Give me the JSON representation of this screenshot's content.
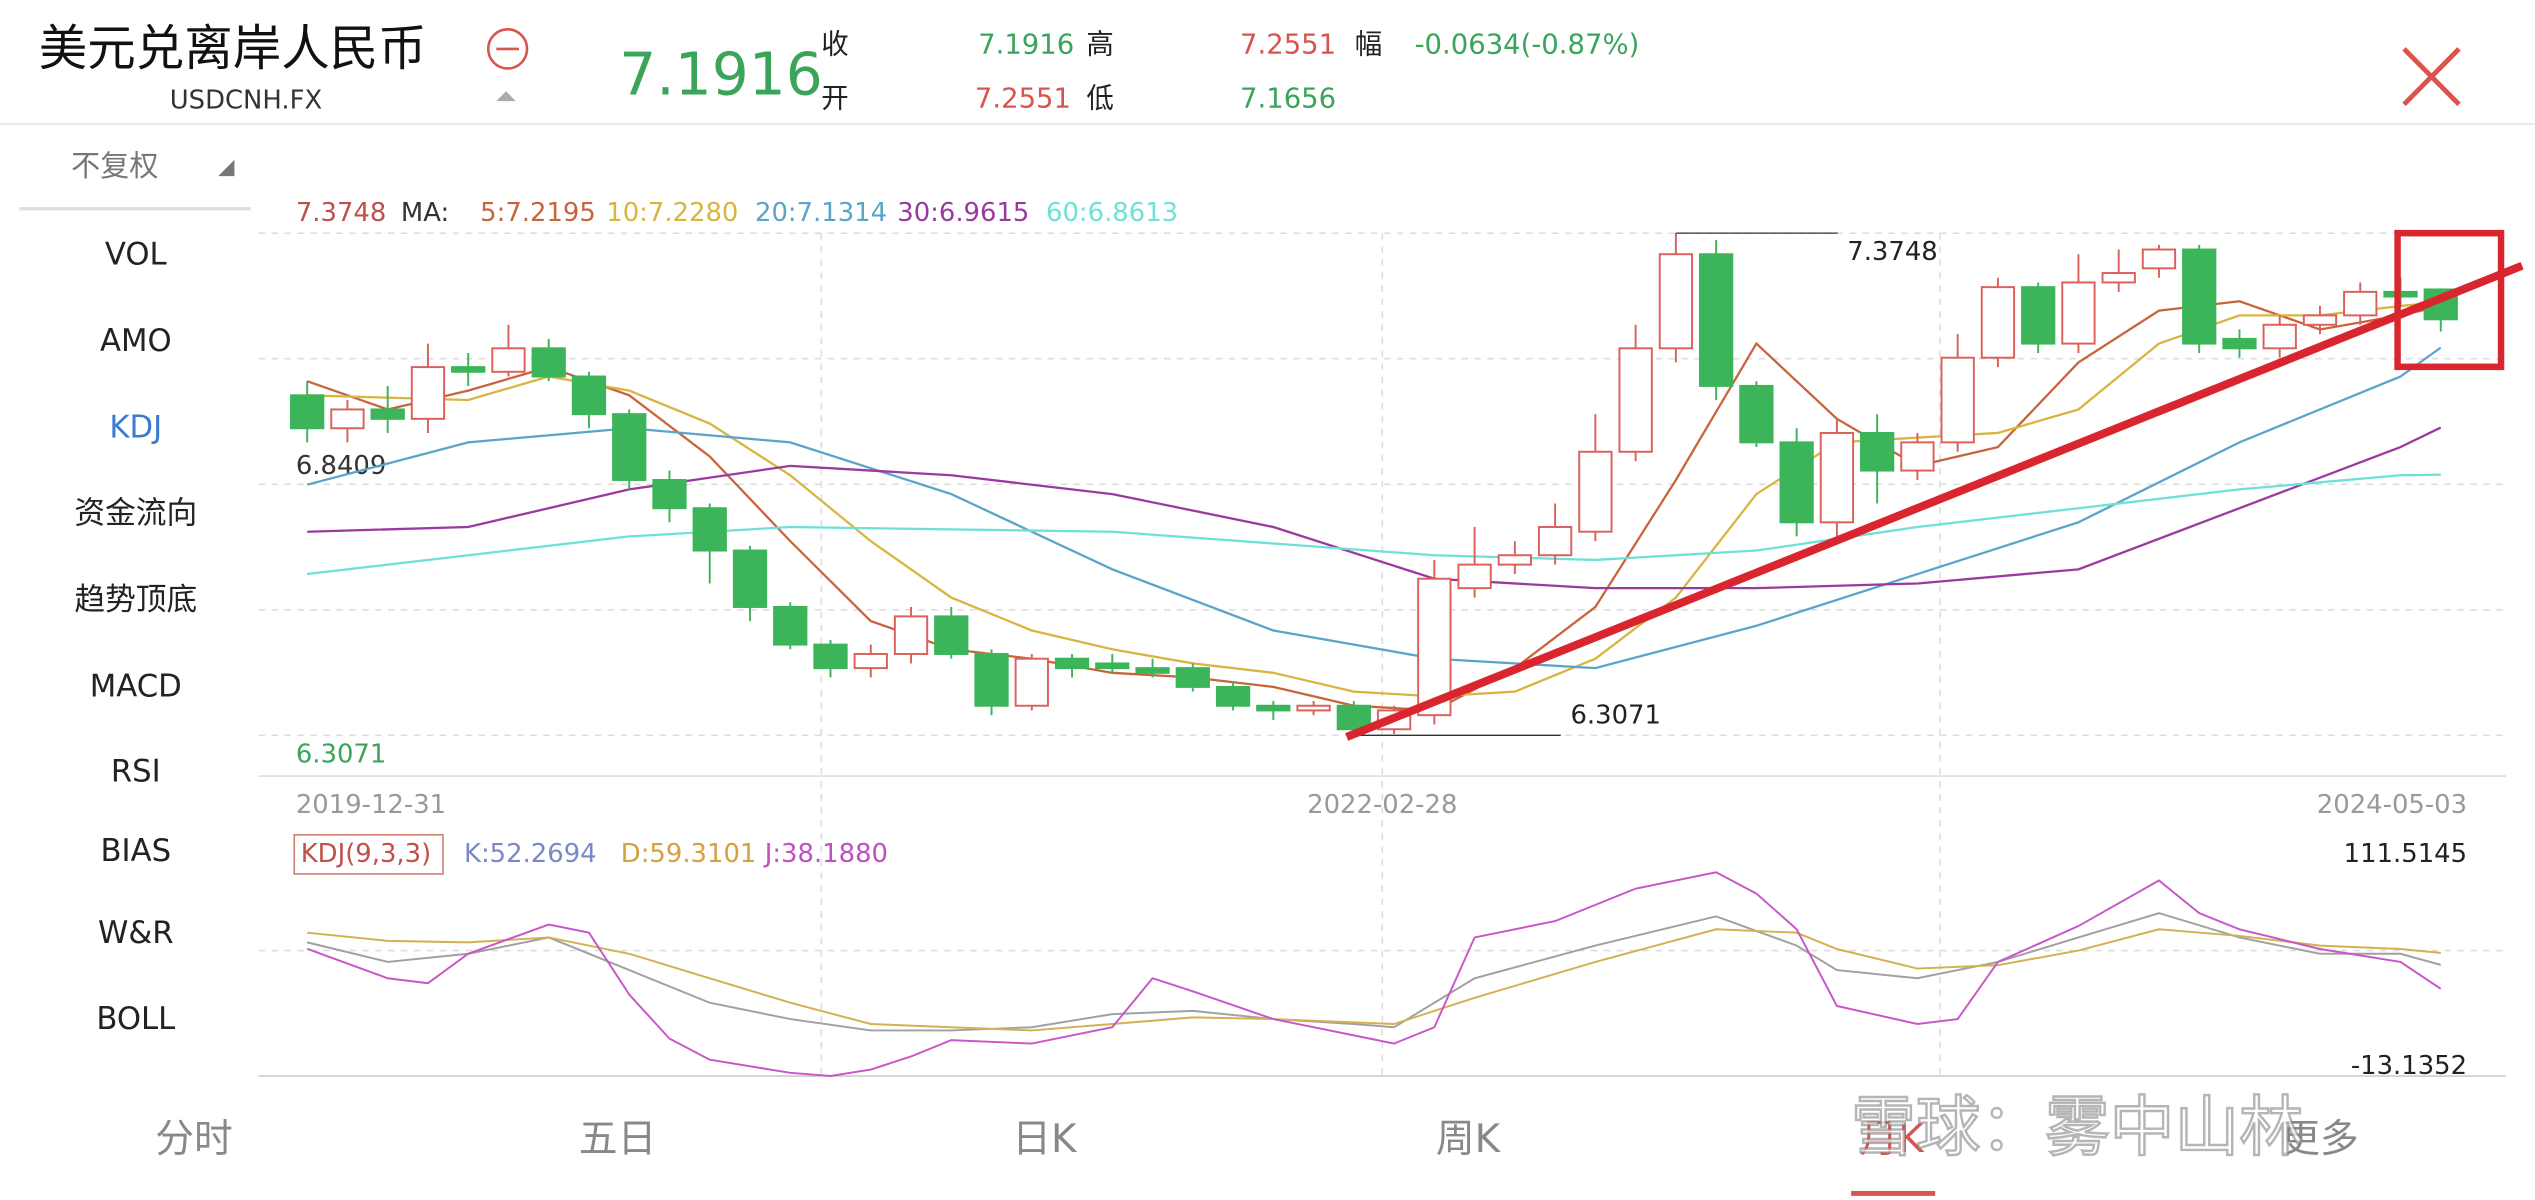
{
  "header": {
    "title": "美元兑离岸人民币",
    "code": "USDCNH.FX",
    "price": "7.1916",
    "close_label": "收",
    "close": "7.1916",
    "high_label": "高",
    "high": "7.2551",
    "change_label": "幅",
    "change": "-0.0634(-0.87%)",
    "open_label": "开",
    "open": "7.2551",
    "low_label": "低",
    "low": "7.1656"
  },
  "sidebar": {
    "adjust": "不复权",
    "items": [
      "VOL",
      "AMO",
      "KDJ",
      "资金流向",
      "趋势顶底",
      "MACD",
      "RSI",
      "BIAS",
      "W&R",
      "BOLL"
    ],
    "selected": 2
  },
  "chart": {
    "type": "candlestick",
    "ylim": [
      6.3071,
      7.3748
    ],
    "yticks": [
      6.3071,
      6.8409,
      7.3748
    ],
    "up_color": "#dc5f5a",
    "down_color": "#3cb55a",
    "ma_label": "MA:",
    "high_annotation": "7.3748",
    "low_annotation": "6.3071",
    "x_labels": [
      "2019-12-31",
      "2022-02-28",
      "2024-05-03"
    ],
    "open": [
      7.03,
      6.96,
      7.0,
      6.98,
      7.09,
      7.08,
      7.13,
      7.07,
      6.99,
      6.85,
      6.79,
      6.7,
      6.58,
      6.5,
      6.45,
      6.48,
      6.56,
      6.48,
      6.37,
      6.47,
      6.46,
      6.45,
      6.45,
      6.41,
      6.37,
      6.36,
      6.37,
      6.32,
      6.35,
      6.62,
      6.67,
      6.69,
      6.74,
      6.91,
      7.13,
      7.33,
      7.05,
      6.93,
      6.76,
      6.95,
      6.87,
      6.93,
      7.11,
      7.26,
      7.14,
      7.27,
      7.3,
      7.34,
      7.15,
      7.13,
      7.18,
      7.2,
      7.25,
      7.2551
    ],
    "high": [
      7.06,
      7.02,
      7.05,
      7.14,
      7.12,
      7.18,
      7.15,
      7.08,
      7.0,
      6.87,
      6.8,
      6.71,
      6.59,
      6.51,
      6.5,
      6.58,
      6.58,
      6.49,
      6.48,
      6.48,
      6.48,
      6.47,
      6.46,
      6.42,
      6.38,
      6.38,
      6.38,
      6.37,
      6.68,
      6.75,
      6.72,
      6.8,
      6.99,
      7.18,
      7.3748,
      7.36,
      7.06,
      6.96,
      6.98,
      6.99,
      6.95,
      7.16,
      7.28,
      7.27,
      7.33,
      7.34,
      7.35,
      7.35,
      7.17,
      7.2,
      7.22,
      7.27,
      7.28,
      7.2551
    ],
    "low": [
      6.93,
      6.93,
      6.95,
      6.95,
      7.05,
      7.07,
      7.06,
      6.96,
      6.83,
      6.76,
      6.63,
      6.55,
      6.49,
      6.43,
      6.43,
      6.46,
      6.47,
      6.35,
      6.36,
      6.43,
      6.44,
      6.43,
      6.4,
      6.36,
      6.34,
      6.35,
      6.3071,
      6.31,
      6.33,
      6.6,
      6.65,
      6.67,
      6.72,
      6.89,
      7.1,
      7.02,
      6.92,
      6.73,
      6.73,
      6.8,
      6.85,
      6.91,
      7.09,
      7.12,
      7.12,
      7.25,
      7.28,
      7.12,
      7.11,
      7.11,
      7.16,
      7.18,
      7.22,
      7.1656
    ],
    "close": [
      6.96,
      7.0,
      6.98,
      7.09,
      7.08,
      7.13,
      7.07,
      6.99,
      6.85,
      6.79,
      6.7,
      6.58,
      6.5,
      6.45,
      6.48,
      6.56,
      6.48,
      6.37,
      6.47,
      6.45,
      6.45,
      6.44,
      6.41,
      6.37,
      6.36,
      6.37,
      6.32,
      6.36,
      6.64,
      6.67,
      6.69,
      6.75,
      6.91,
      7.13,
      7.33,
      7.05,
      6.93,
      6.76,
      6.95,
      6.87,
      6.93,
      7.11,
      7.26,
      7.14,
      7.27,
      7.29,
      7.34,
      7.14,
      7.13,
      7.18,
      7.2,
      7.25,
      7.24,
      7.1916
    ],
    "ma": [
      {
        "name": "5",
        "label": "5:7.2195",
        "color": "#c8643c",
        "x": [
          0,
          2,
          4,
          6,
          8,
          10,
          12,
          14,
          16,
          18,
          20,
          22,
          24,
          26,
          28,
          30,
          32,
          34,
          36,
          38,
          40,
          42,
          44,
          46,
          48,
          50,
          52,
          53
        ],
        "values": [
          7.06,
          7.0,
          7.04,
          7.09,
          7.03,
          6.9,
          6.72,
          6.55,
          6.49,
          6.47,
          6.44,
          6.43,
          6.41,
          6.37,
          6.36,
          6.45,
          6.58,
          6.85,
          7.14,
          6.98,
          6.88,
          6.92,
          7.1,
          7.21,
          7.23,
          7.17,
          7.2,
          7.2195
        ]
      },
      {
        "name": "10",
        "label": "10:7.2280",
        "color": "#d8b440",
        "x": [
          0,
          4,
          6,
          8,
          10,
          12,
          14,
          16,
          18,
          20,
          22,
          24,
          26,
          28,
          30,
          32,
          34,
          36,
          38,
          40,
          42,
          44,
          46,
          48,
          50,
          52,
          53
        ],
        "values": [
          7.03,
          7.02,
          7.07,
          7.04,
          6.97,
          6.86,
          6.72,
          6.6,
          6.53,
          6.49,
          6.46,
          6.44,
          6.4,
          6.39,
          6.4,
          6.47,
          6.6,
          6.82,
          6.93,
          6.94,
          6.95,
          7.0,
          7.14,
          7.2,
          7.2,
          7.22,
          7.228
        ]
      },
      {
        "name": "20",
        "label": "20:7.1314",
        "color": "#5aa4c8",
        "x": [
          0,
          4,
          8,
          12,
          16,
          20,
          24,
          28,
          32,
          36,
          40,
          44,
          48,
          52,
          53
        ],
        "values": [
          6.84,
          6.93,
          6.96,
          6.93,
          6.82,
          6.66,
          6.53,
          6.47,
          6.45,
          6.54,
          6.65,
          6.76,
          6.93,
          7.07,
          7.1314
        ]
      },
      {
        "name": "30",
        "label": "30:6.9615",
        "color": "#9a3aa0",
        "x": [
          0,
          4,
          8,
          12,
          16,
          20,
          24,
          28,
          32,
          36,
          40,
          44,
          48,
          52,
          53
        ],
        "values": [
          6.74,
          6.75,
          6.83,
          6.88,
          6.86,
          6.82,
          6.75,
          6.64,
          6.62,
          6.62,
          6.63,
          6.66,
          6.79,
          6.92,
          6.9615
        ]
      },
      {
        "name": "60",
        "label": "60:6.8613",
        "color": "#6ee0d8",
        "x": [
          0,
          4,
          8,
          12,
          20,
          28,
          32,
          36,
          40,
          44,
          48,
          52,
          53
        ],
        "values": [
          6.65,
          6.69,
          6.73,
          6.75,
          6.74,
          6.69,
          6.68,
          6.7,
          6.75,
          6.79,
          6.83,
          6.86,
          6.8613
        ]
      }
    ]
  },
  "kdj": {
    "type": "line",
    "title": "KDJ(9,3,3)",
    "ylim": [
      -13.1352,
      111.5145
    ],
    "yticks": [
      111.5145,
      -13.1352
    ],
    "series": [
      {
        "name": "K",
        "label": "K:52.2694",
        "color": "#a0a0a0",
        "label_color": "#7a88c8",
        "x": [
          0,
          2,
          4,
          6,
          8,
          10,
          12,
          14,
          16,
          18,
          20,
          22,
          24,
          26,
          27,
          29,
          32,
          35,
          37,
          38,
          40,
          42,
          44,
          46,
          48,
          50,
          52,
          53
        ],
        "values": [
          65.5,
          54.0,
          58.8,
          68.4,
          49.2,
          30.0,
          20.4,
          13.7,
          13.7,
          15.6,
          23.3,
          25.2,
          20.4,
          17.5,
          15.6,
          44.4,
          63.6,
          80.8,
          63.6,
          49.2,
          44.4,
          54.0,
          68.4,
          82.7,
          68.4,
          58.8,
          58.8,
          52.2694
        ]
      },
      {
        "name": "D",
        "label": "D:59.3101",
        "color": "#d4b050",
        "label_color": "#d4a040",
        "x": [
          0,
          2,
          4,
          6,
          8,
          10,
          12,
          14,
          16,
          18,
          20,
          22,
          24,
          26,
          27,
          29,
          32,
          35,
          37,
          38,
          40,
          42,
          44,
          46,
          48,
          50,
          52,
          53
        ],
        "values": [
          71.2,
          66.4,
          65.5,
          68.4,
          58.8,
          44.4,
          30.0,
          17.5,
          15.6,
          13.7,
          17.5,
          21.4,
          20.4,
          18.5,
          17.5,
          32.9,
          54.0,
          73.2,
          71.2,
          61.6,
          50.1,
          52.1,
          60.7,
          73.2,
          69.3,
          63.6,
          61.6,
          59.3101
        ]
      },
      {
        "name": "J",
        "label": "J:38.1880",
        "color": "#c856c8",
        "label_color": "#c050c0",
        "x": [
          0,
          2,
          3,
          4,
          6,
          7,
          8,
          9,
          10,
          12,
          13,
          14,
          15,
          16,
          18,
          20,
          21,
          22,
          24,
          25,
          26,
          27,
          28,
          29,
          31,
          33,
          35,
          36,
          37,
          38,
          40,
          41,
          42,
          44,
          46,
          47,
          48,
          50,
          52,
          53
        ],
        "values": [
          61.7,
          44.4,
          41.5,
          58.8,
          76.0,
          71.2,
          34.8,
          8.9,
          -3.5,
          -11.2,
          -13.1,
          -9.3,
          -1.6,
          8.0,
          6.0,
          15.6,
          44.4,
          36.7,
          20.4,
          15.6,
          10.8,
          6.0,
          15.6,
          68.4,
          78.0,
          97.1,
          106.7,
          94.2,
          73.2,
          28.1,
          17.5,
          20.4,
          54.0,
          75.1,
          101.9,
          82.7,
          73.2,
          61.6,
          54.0,
          38.188
        ]
      }
    ]
  },
  "tabs": {
    "items": [
      "分时",
      "五日",
      "日K",
      "周K",
      "月K",
      "更多"
    ],
    "selected": 4
  },
  "watermark": "雪球：雾中山林"
}
